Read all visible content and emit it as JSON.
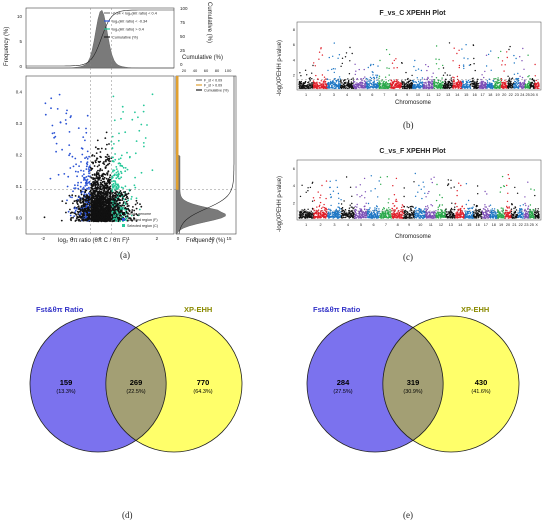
{
  "panel_a": {
    "caption": "(a)",
    "top_ylabel": "Frequency (%)",
    "top_right_label": "Cumulative (%)",
    "top_cum_ticks": [
      "0",
      "25",
      "50",
      "75",
      "100"
    ],
    "top_legend": [
      "-0.34 < log₂(θπ ratio) < 0.4",
      "log₂(θπ ratio) < -0.34",
      "log₂(θπ ratio) > 0.4",
      "Cumulative (%)"
    ],
    "top_freq_ticks": [
      "10",
      "5",
      "0"
    ],
    "mid_cum_label": "Cumulative (%)",
    "mid_cum_ticks": [
      "20",
      "40",
      "60",
      "80",
      "100"
    ],
    "right_legend": [
      "F_st < 0.09",
      "F_st > 0.09",
      "Cumulative (%)"
    ],
    "fst_ticks": [
      "0.4",
      "0.3",
      "0.2",
      "0.1",
      "0.0"
    ],
    "x_ticks": [
      "-2",
      "-1",
      "0",
      "1",
      "2"
    ],
    "xlabel": "log₂ θπ ratio (θπ C / θπ F)",
    "right_xlabel": "Frequency (%)",
    "right_x_ticks": [
      "0",
      "5",
      "10",
      "15"
    ],
    "scatter_legend": [
      "Whole genome",
      "Selected region (F)",
      "Selected region (C)"
    ],
    "colors": {
      "neutral": "#111111",
      "blue": "#2a52d4",
      "green": "#27c89a",
      "gray": "#7a7a7a",
      "orange": "#e0a030",
      "cum": "#222222"
    }
  },
  "panel_b": {
    "caption": "(b)",
    "title": "F_vs_C XPEHH Plot",
    "ylabel": "-log(XPEHH p-value)",
    "xlabel": "Chromosome",
    "y_ticks": [
      "8",
      "6",
      "4",
      "2"
    ],
    "chromosomes": [
      "1",
      "2",
      "3",
      "4",
      "5",
      "6",
      "7",
      "8",
      "9",
      "10",
      "11",
      "12",
      "13",
      "14",
      "15",
      "16",
      "17",
      "18",
      "19",
      "20",
      "22",
      "23",
      "24",
      "25",
      "26",
      "X"
    ]
  },
  "panel_c": {
    "caption": "(c)",
    "title": "C_vs_F XPEHH Plot",
    "ylabel": "-log(XPEHH p-value)",
    "xlabel": "Chromosome",
    "y_ticks": [
      "6",
      "4",
      "2"
    ],
    "chromosomes": [
      "1",
      "2",
      "3",
      "4",
      "5",
      "6",
      "7",
      "8",
      "9",
      "10",
      "11",
      "12",
      "13",
      "14",
      "15",
      "16",
      "17",
      "18",
      "19",
      "20",
      "21",
      "22",
      "23",
      "25",
      "X"
    ]
  },
  "panel_d": {
    "caption": "(d)",
    "left_label": "Fst&θπ Ratio",
    "right_label": "XP-EHH",
    "left_count": "159",
    "left_pct": "(13.3%)",
    "mid_count": "269",
    "mid_pct": "(22.5%)",
    "right_count": "770",
    "right_pct": "(64.3%)"
  },
  "panel_e": {
    "caption": "(e)",
    "left_label": "Fst&θπ Ratio",
    "right_label": "XP-EHH",
    "left_count": "284",
    "left_pct": "(27.5%)",
    "mid_count": "319",
    "mid_pct": "(30.9%)",
    "right_count": "430",
    "right_pct": "(41.6%)"
  },
  "chart_data": [
    {
      "type": "scatter",
      "panel": "a",
      "xlabel": "log₂ θπ ratio (θπ C / θπ F)",
      "ylabel": "Fst",
      "xlim": [
        -2.6,
        2.6
      ],
      "ylim": [
        -0.05,
        0.45
      ],
      "thresholds": {
        "x_low": -0.34,
        "x_high": 0.4,
        "y": 0.09
      }
    },
    {
      "type": "scatter",
      "panel": "b",
      "title": "F_vs_C XPEHH Plot",
      "xlabel": "Chromosome",
      "ylabel": "-log(XPEHH p-value)",
      "ylim": [
        0,
        9
      ]
    },
    {
      "type": "scatter",
      "panel": "c",
      "title": "C_vs_F XPEHH Plot",
      "xlabel": "Chromosome",
      "ylabel": "-log(XPEHH p-value)",
      "ylim": [
        0,
        7
      ]
    },
    {
      "type": "venn",
      "panel": "d",
      "sets": [
        "Fst&θπ Ratio",
        "XP-EHH"
      ],
      "values": {
        "left_only": 159,
        "intersection": 269,
        "right_only": 770
      }
    },
    {
      "type": "venn",
      "panel": "e",
      "sets": [
        "Fst&θπ Ratio",
        "XP-EHH"
      ],
      "values": {
        "left_only": 284,
        "intersection": 319,
        "right_only": 430
      }
    }
  ]
}
